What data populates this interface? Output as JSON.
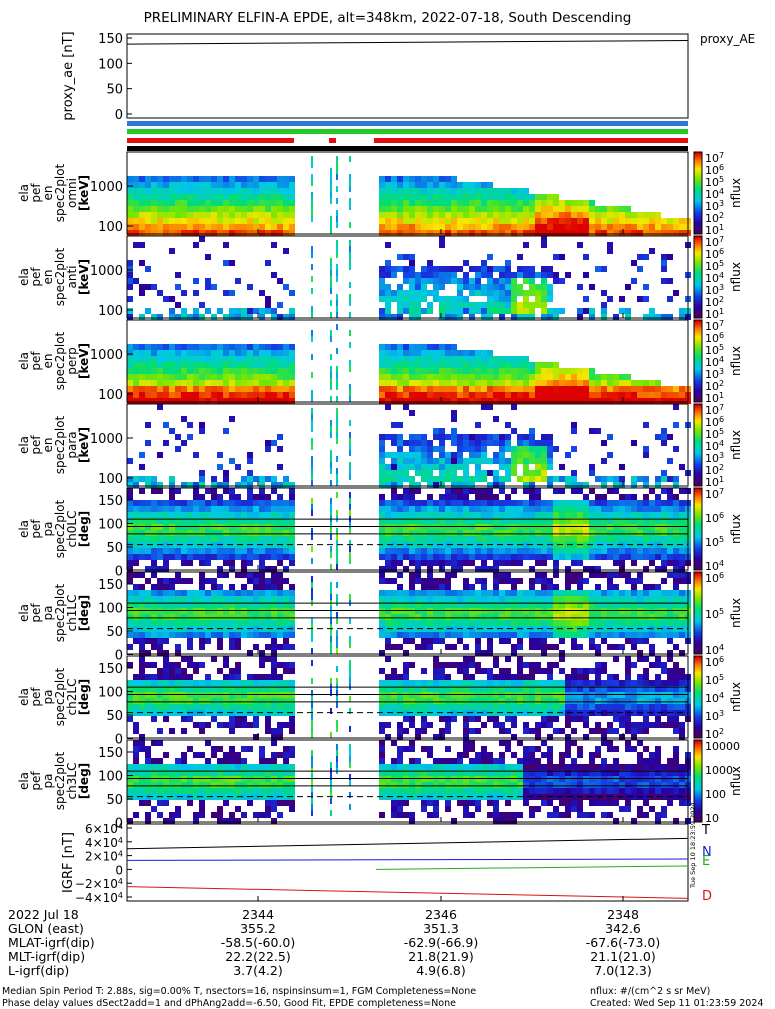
{
  "title": "PRELIMINARY ELFIN-A EPDE, alt=348km, 2022-07-18, South Descending",
  "proxy_panel": {
    "label": "proxy_AE",
    "ylabel": "proxy_ae [nT]",
    "yticks": [
      "150",
      "100",
      "50",
      "0"
    ]
  },
  "status_bars": {
    "colors": [
      "#2a7ad8",
      "#22cc22",
      "#e01010",
      "#000000"
    ]
  },
  "spectra_panels": [
    {
      "ylabel": [
        "ela",
        "pef",
        "en",
        "spec2plot",
        "omni",
        "[keV]"
      ],
      "yticks": [
        "1000",
        "100"
      ],
      "zlabel": "nflux",
      "zticks": [
        "10^7",
        "10^6",
        "10^5",
        "10^4",
        "10^3",
        "10^2",
        "10^1"
      ]
    },
    {
      "ylabel": [
        "ela",
        "pef",
        "en",
        "spec2plot",
        "anti",
        "[keV]"
      ],
      "yticks": [
        "1000",
        "100"
      ],
      "zlabel": "nflux",
      "zticks": [
        "10^7",
        "10^6",
        "10^5",
        "10^4",
        "10^3",
        "10^2",
        "10^1"
      ]
    },
    {
      "ylabel": [
        "ela",
        "pef",
        "en",
        "spec2plot",
        "perp",
        "[keV]"
      ],
      "yticks": [
        "1000",
        "100"
      ],
      "zlabel": "nflux",
      "zticks": [
        "10^7",
        "10^6",
        "10^5",
        "10^4",
        "10^3",
        "10^2",
        "10^1"
      ]
    },
    {
      "ylabel": [
        "ela",
        "pef",
        "en",
        "spec2plot",
        "para",
        "[keV]"
      ],
      "yticks": [
        "1000",
        "100"
      ],
      "zlabel": "nflux",
      "zticks": [
        "10^7",
        "10^6",
        "10^5",
        "10^4",
        "10^3",
        "10^2",
        "10^1"
      ]
    },
    {
      "ylabel": [
        "ela",
        "pef",
        "pa",
        "spec2plot",
        "ch0LC",
        "[deg]"
      ],
      "yticks": [
        "150",
        "100",
        "50",
        "0"
      ],
      "zlabel": "nflux",
      "zticks": [
        "10^7",
        "10^6",
        "10^5",
        "10^4"
      ]
    },
    {
      "ylabel": [
        "ela",
        "pef",
        "pa",
        "spec2plot",
        "ch1LC",
        "[deg]"
      ],
      "yticks": [
        "150",
        "100",
        "50",
        "0"
      ],
      "zlabel": "nflux",
      "zticks": [
        "10^6",
        "10^5",
        "10^4"
      ]
    },
    {
      "ylabel": [
        "ela",
        "pef",
        "pa",
        "spec2plot",
        "ch2LC",
        "[deg]"
      ],
      "yticks": [
        "150",
        "100",
        "50",
        "0"
      ],
      "zlabel": "nflux",
      "zticks": [
        "10^6",
        "10^5",
        "10^4",
        "10^3",
        "10^2"
      ]
    },
    {
      "ylabel": [
        "ela",
        "pef",
        "pa",
        "spec2plot",
        "ch3LC",
        "[deg]"
      ],
      "yticks": [
        "150",
        "100",
        "50",
        "0"
      ],
      "zlabel": "nflux",
      "zticks": [
        "10000",
        "1000",
        "100",
        "10"
      ]
    }
  ],
  "igrf_panel": {
    "ylabel": "IGRF [nT]",
    "yticks": [
      "6×10^4",
      "4×10^4",
      "2×10^4",
      "0",
      "−2×10^4",
      "−4×10^4"
    ],
    "legend": [
      {
        "label": "T",
        "color": "#000000"
      },
      {
        "label": "N",
        "color": "#1a1ae0"
      },
      {
        "label": "E",
        "color": "#22aa22"
      },
      {
        "label": "D",
        "color": "#e01010"
      }
    ]
  },
  "chart_data": {
    "type": "heatmap",
    "title": "PRELIMINARY ELFIN-A EPDE, alt=348km, 2022-07-18, South Descending",
    "x_ticks": [
      "2344",
      "2346",
      "2348"
    ],
    "proxy_ae": {
      "x": [
        "start",
        "end"
      ],
      "values": [
        138,
        145
      ]
    },
    "igrf_lines": [
      {
        "name": "T",
        "start": 30000,
        "end": 45000
      },
      {
        "name": "N",
        "start": 13000,
        "end": 15000
      },
      {
        "name": "E",
        "start": 0,
        "end": 5000
      },
      {
        "name": "D",
        "start": -25000,
        "end": -42000
      }
    ]
  },
  "orbit_table": {
    "rows": [
      {
        "label": "2022 Jul 18",
        "vals": [
          "2344",
          "2346",
          "2348"
        ]
      },
      {
        "label": "GLON (east)",
        "vals": [
          "355.2",
          "351.3",
          "342.6"
        ]
      },
      {
        "label": "MLAT-igrf(dip)",
        "vals": [
          "-58.5(-60.0)",
          "-62.9(-66.9)",
          "-67.6(-73.0)"
        ]
      },
      {
        "label": "MLT-igrf(dip)",
        "vals": [
          "22.2(22.5)",
          "21.8(21.9)",
          "21.1(21.0)"
        ]
      },
      {
        "label": "L-igrf(dip)",
        "vals": [
          "3.7(4.2)",
          "4.9(6.8)",
          "7.0(12.3)"
        ]
      }
    ]
  },
  "footer": {
    "left_1": "Median Spin Period T: 2.88s, sig=0.00% T, nsectors=16, nspinsinsum=1, FGM Completeness=None",
    "left_2": "Phase delay values dSect2add=1 and dPhAng2add=-6.50, Good Fit, EPDE completeness=None",
    "right_1": "nflux: #/(cm^2 s sr MeV)",
    "right_2": "Created: Wed Sep 11 01:23:59 2024",
    "created_vertical": "Tue Sep 10 18:23:59 2024"
  }
}
